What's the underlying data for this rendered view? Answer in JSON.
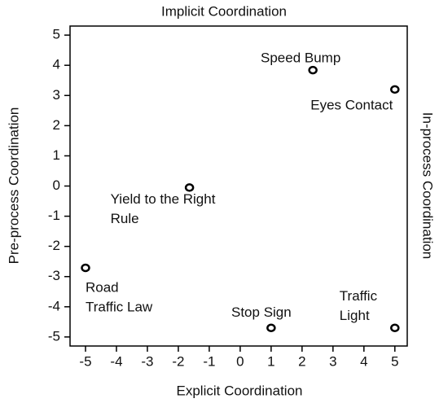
{
  "chart_data": {
    "type": "scatter",
    "title": "Implicit Coordination",
    "x_label": "Explicit Coordination",
    "y_label": "Pre-process Coordination",
    "y2_label": "In-process Coordination",
    "series": [
      {
        "name": null,
        "color": "#000000",
        "x": [
          2.35,
          5,
          -1.64,
          -5,
          1,
          5
        ],
        "values": [
          3.84,
          3.2,
          -0.05,
          -2.71,
          -4.7,
          -4.7
        ],
        "labels": [
          [
            "Speed Bump"
          ],
          [
            "Eyes Contact"
          ],
          [
            "Yield to the Right",
            "Rule"
          ],
          [
            "Road",
            "Traffic Law"
          ],
          [
            "Stop Sign"
          ],
          [
            "Traffic",
            "Light"
          ]
        ]
      }
    ],
    "xlim": [
      -5.5,
      5.4
    ],
    "ylim": [
      -5.3,
      5.3
    ],
    "xticks": [
      -5,
      -4,
      -3,
      -2,
      -1,
      0,
      1,
      2,
      3,
      4,
      5
    ],
    "yticks": [
      -5,
      -4,
      -3,
      -2,
      -1,
      0,
      1,
      2,
      3,
      4,
      5
    ],
    "grid": false
  }
}
